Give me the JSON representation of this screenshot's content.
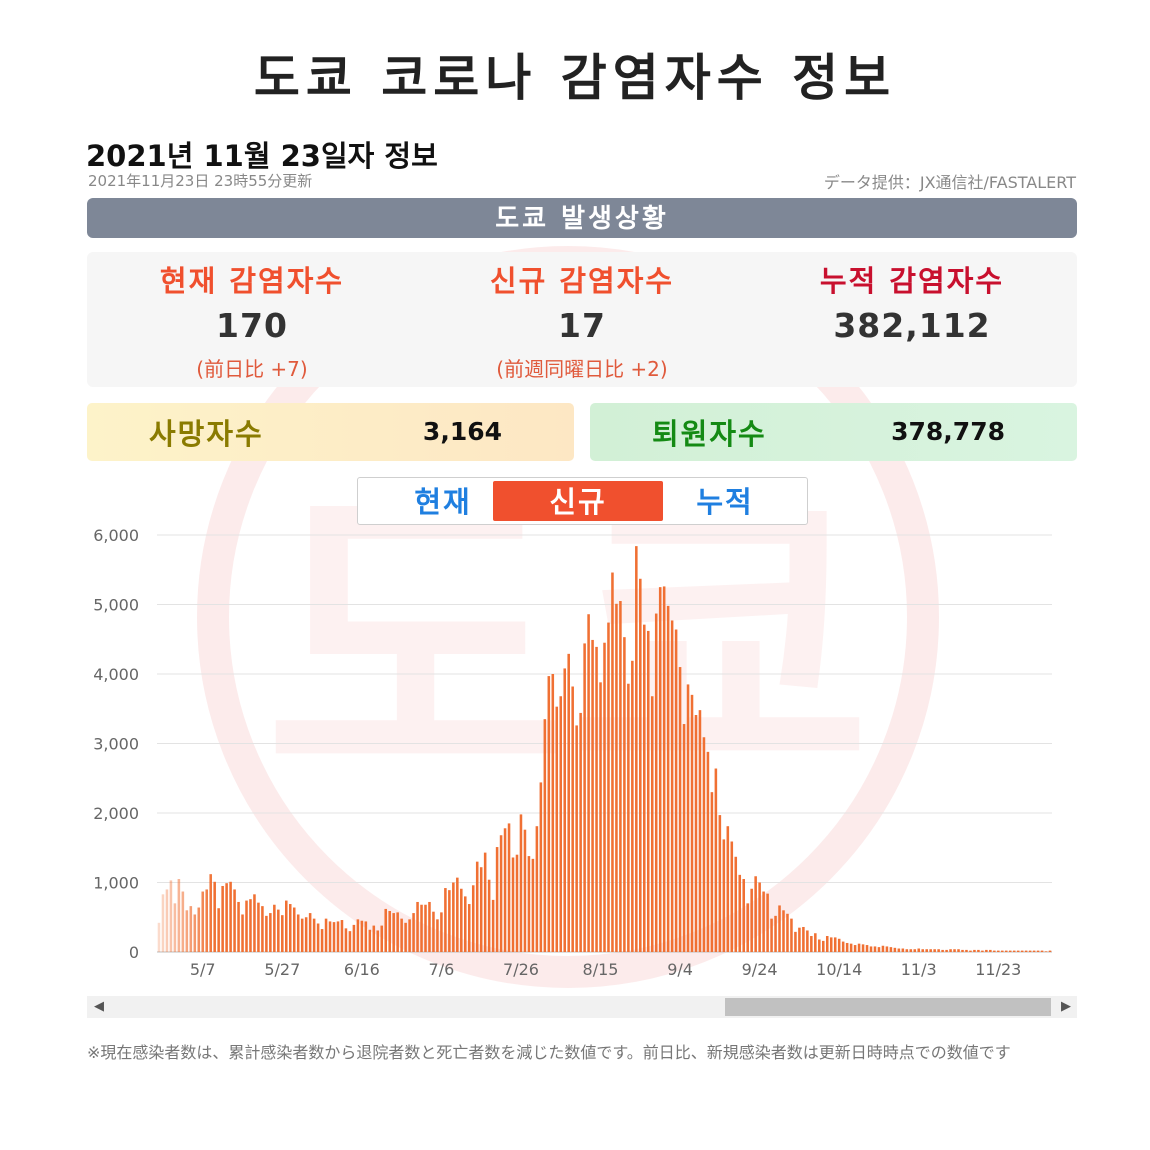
{
  "page": {
    "title": "도쿄 코로나 감염자수 정보",
    "date_title": "2021년 11월 23일자 정보",
    "updated": "2021年11月23日 23時55分更新",
    "source": "データ提供：JX通信社/FASTALERT",
    "region": "도쿄 발생상황",
    "watermark_text": "도쿄"
  },
  "stats": {
    "current": {
      "label": "현재 감염자수",
      "value": "170",
      "sub": "(前日比 +7)",
      "color": "#f0502e"
    },
    "new": {
      "label": "신규 감염자수",
      "value": "17",
      "sub": "(前週同曜日比 +2)",
      "color": "#f0502e"
    },
    "total": {
      "label": "누적 감염자수",
      "value": "382,112",
      "sub": "",
      "color": "#c8102e"
    }
  },
  "deaths": {
    "label": "사망자수",
    "value": "3,164",
    "label_color": "#8a7b00"
  },
  "recovered": {
    "label": "퇴원자수",
    "value": "378,778",
    "label_color": "#148a14"
  },
  "tabs": [
    {
      "label": "현재",
      "active": false
    },
    {
      "label": "신규",
      "active": true
    },
    {
      "label": "누적",
      "active": false
    }
  ],
  "footnote": "※現在感染者数は、累計感染者数から退院者数と死亡者数を減じた数値です。前日比、新規感染者数は更新日時時点での数値です",
  "chart_data": {
    "type": "bar",
    "title": "",
    "xlabel": "",
    "ylabel": "",
    "ylim": [
      0,
      6000
    ],
    "yticks": [
      0,
      1000,
      2000,
      3000,
      4000,
      5000,
      6000
    ],
    "ytick_labels": [
      "0",
      "1,000",
      "2,000",
      "3,000",
      "4,000",
      "5,000",
      "6,000"
    ],
    "x_start": "4/26",
    "x_tick_labels": [
      "5/7",
      "5/27",
      "6/16",
      "7/6",
      "7/26",
      "8/15",
      "9/4",
      "9/24",
      "10/14",
      "11/3",
      "11/23"
    ],
    "x_tick_day_index": [
      11,
      31,
      51,
      71,
      91,
      111,
      131,
      151,
      171,
      191,
      211
    ],
    "bar_color": "#f07033",
    "values": [
      420,
      830,
      900,
      1030,
      700,
      1050,
      870,
      600,
      660,
      540,
      640,
      870,
      900,
      1120,
      1010,
      630,
      950,
      990,
      1010,
      900,
      720,
      540,
      740,
      760,
      830,
      710,
      660,
      520,
      560,
      680,
      610,
      530,
      740,
      690,
      640,
      540,
      480,
      500,
      560,
      480,
      410,
      330,
      480,
      440,
      430,
      440,
      460,
      340,
      300,
      390,
      470,
      450,
      440,
      320,
      380,
      310,
      380,
      620,
      590,
      560,
      570,
      480,
      420,
      470,
      560,
      720,
      680,
      680,
      720,
      580,
      470,
      570,
      920,
      890,
      1000,
      1070,
      910,
      800,
      690,
      960,
      1300,
      1220,
      1430,
      1040,
      750,
      1510,
      1680,
      1780,
      1850,
      1360,
      1400,
      1980,
      1760,
      1380,
      1340,
      1810,
      2440,
      3350,
      3970,
      4000,
      3530,
      3680,
      4080,
      4290,
      3820,
      3260,
      3440,
      4440,
      4860,
      4490,
      4390,
      3880,
      4450,
      4740,
      5460,
      5010,
      5050,
      4530,
      3860,
      4190,
      5840,
      5370,
      4710,
      4620,
      3680,
      4870,
      5250,
      5260,
      4980,
      4770,
      4640,
      4100,
      3280,
      3850,
      3700,
      3410,
      3480,
      3090,
      2880,
      2300,
      2640,
      1970,
      1620,
      1810,
      1590,
      1370,
      1110,
      1050,
      700,
      910,
      1090,
      1000,
      870,
      840,
      480,
      520,
      670,
      600,
      550,
      480,
      290,
      350,
      360,
      310,
      230,
      270,
      180,
      160,
      230,
      210,
      210,
      190,
      150,
      130,
      120,
      100,
      120,
      110,
      100,
      80,
      80,
      70,
      90,
      80,
      70,
      60,
      50,
      50,
      40,
      40,
      40,
      50,
      40,
      40,
      40,
      40,
      40,
      30,
      30,
      40,
      40,
      40,
      30,
      30,
      20,
      30,
      30,
      20,
      30,
      30,
      20,
      20,
      20,
      20,
      20,
      20,
      20,
      20,
      20,
      20,
      20,
      20,
      20,
      10,
      20
    ]
  }
}
